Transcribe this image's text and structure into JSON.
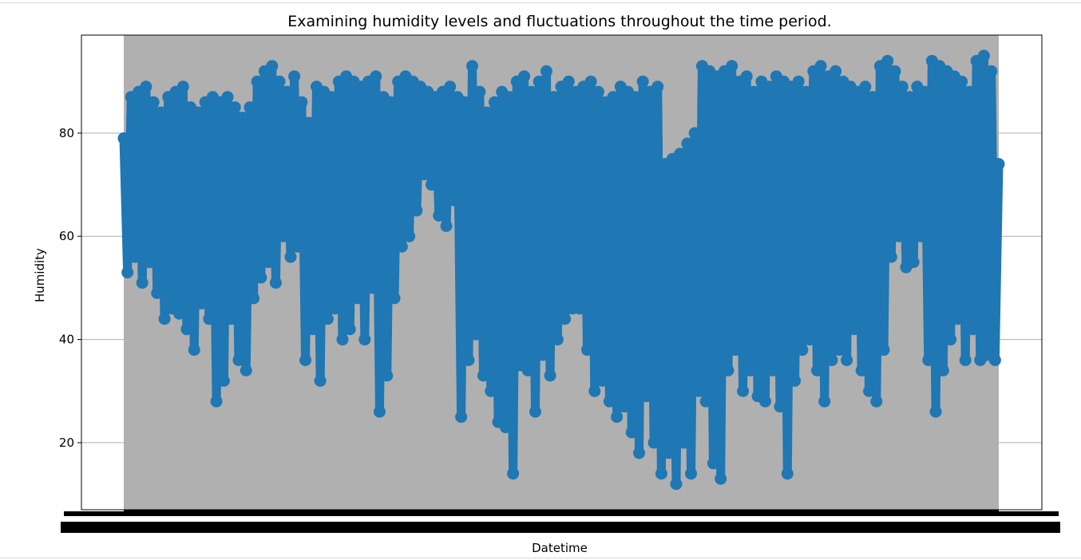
{
  "chart_data": {
    "type": "line",
    "title": "Examining humidity levels and fluctuations throughout the time period.",
    "xlabel": "Datetime",
    "ylabel": "Humidity",
    "ylim": [
      7,
      99
    ],
    "yticks": [
      20,
      40,
      60,
      80
    ],
    "grid": "y-axis only",
    "marker": "circle",
    "colors": {
      "series": "#1f77b4",
      "highlight_band": "#b0b0b0"
    },
    "x_tick_labels_note": "overlapping, illegible",
    "series": [
      {
        "values": [
          79,
          53,
          87,
          56,
          88,
          51,
          89,
          55,
          86,
          49,
          84,
          44,
          87,
          46,
          88,
          45,
          89,
          42,
          85,
          38,
          84,
          47,
          86,
          44,
          87,
          28,
          86,
          32,
          87,
          44,
          85,
          36,
          83,
          34,
          85,
          48,
          90,
          52,
          92,
          55,
          93,
          51,
          90,
          60,
          88,
          56,
          91,
          58,
          86,
          36,
          82,
          42,
          89,
          32,
          88,
          44,
          87,
          46,
          90,
          40,
          91,
          42,
          90,
          48,
          89,
          40,
          90,
          50,
          91,
          26,
          87,
          33,
          86,
          48,
          90,
          58,
          91,
          60,
          90,
          65,
          89,
          72,
          88,
          70,
          87,
          64,
          88,
          62,
          89,
          67,
          87,
          25,
          86,
          36,
          93,
          41,
          88,
          33,
          84,
          30,
          86,
          24,
          88,
          23,
          87,
          14,
          90,
          35,
          91,
          34,
          88,
          26,
          90,
          37,
          92,
          33,
          87,
          40,
          89,
          44,
          90,
          46,
          88,
          46,
          89,
          38,
          90,
          30,
          88,
          32,
          86,
          28,
          87,
          25,
          89,
          27,
          88,
          22,
          87,
          18,
          90,
          29,
          88,
          20,
          89,
          14,
          74,
          18,
          75,
          12,
          76,
          20,
          78,
          14,
          80,
          30,
          93,
          28,
          92,
          16,
          91,
          13,
          92,
          34,
          93,
          38,
          90,
          30,
          91,
          34,
          88,
          29,
          90,
          28,
          89,
          34,
          91,
          27,
          90,
          14,
          89,
          32,
          90,
          38,
          88,
          40,
          92,
          34,
          93,
          28,
          91,
          36,
          92,
          38,
          90,
          36,
          89,
          42,
          88,
          34,
          89,
          30,
          87,
          28,
          93,
          38,
          94,
          56,
          92,
          60,
          89,
          54,
          87,
          55,
          89,
          60,
          88,
          36,
          94,
          26,
          93,
          34,
          92,
          40,
          91,
          44,
          90,
          36,
          88,
          42,
          94,
          36,
          95,
          37,
          92,
          36,
          74
        ]
      }
    ]
  }
}
